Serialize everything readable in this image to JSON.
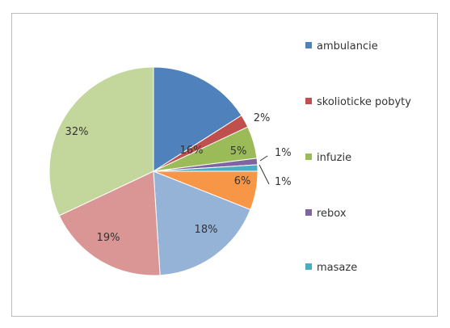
{
  "chart_data": {
    "type": "pie",
    "title": "",
    "slices": [
      {
        "label": "ambulancie",
        "value": 16,
        "display": "16%",
        "color": "#4F81BD"
      },
      {
        "label": "skolioticke pobyty",
        "value": 2,
        "display": "2%",
        "color": "#C0504D"
      },
      {
        "label": "infuzie",
        "value": 5,
        "display": "5%",
        "color": "#9BBB59"
      },
      {
        "label": "rebox",
        "value": 1,
        "display": "1%",
        "color": "#8064A2"
      },
      {
        "label": "masaze",
        "value": 1,
        "display": "1%",
        "color": "#4BACC6"
      },
      {
        "label": "",
        "value": 6,
        "display": "6%",
        "color": "#F79646"
      },
      {
        "label": "",
        "value": 18,
        "display": "18%",
        "color": "#95B3D7"
      },
      {
        "label": "",
        "value": 19,
        "display": "19%",
        "color": "#D99694"
      },
      {
        "label": "",
        "value": 32,
        "display": "32%",
        "color": "#C3D69B"
      }
    ],
    "legend": {
      "placement": "right",
      "entries": [
        "ambulancie",
        "skolioticke pobyty",
        "infuzie",
        "rebox",
        "masaze"
      ]
    }
  }
}
